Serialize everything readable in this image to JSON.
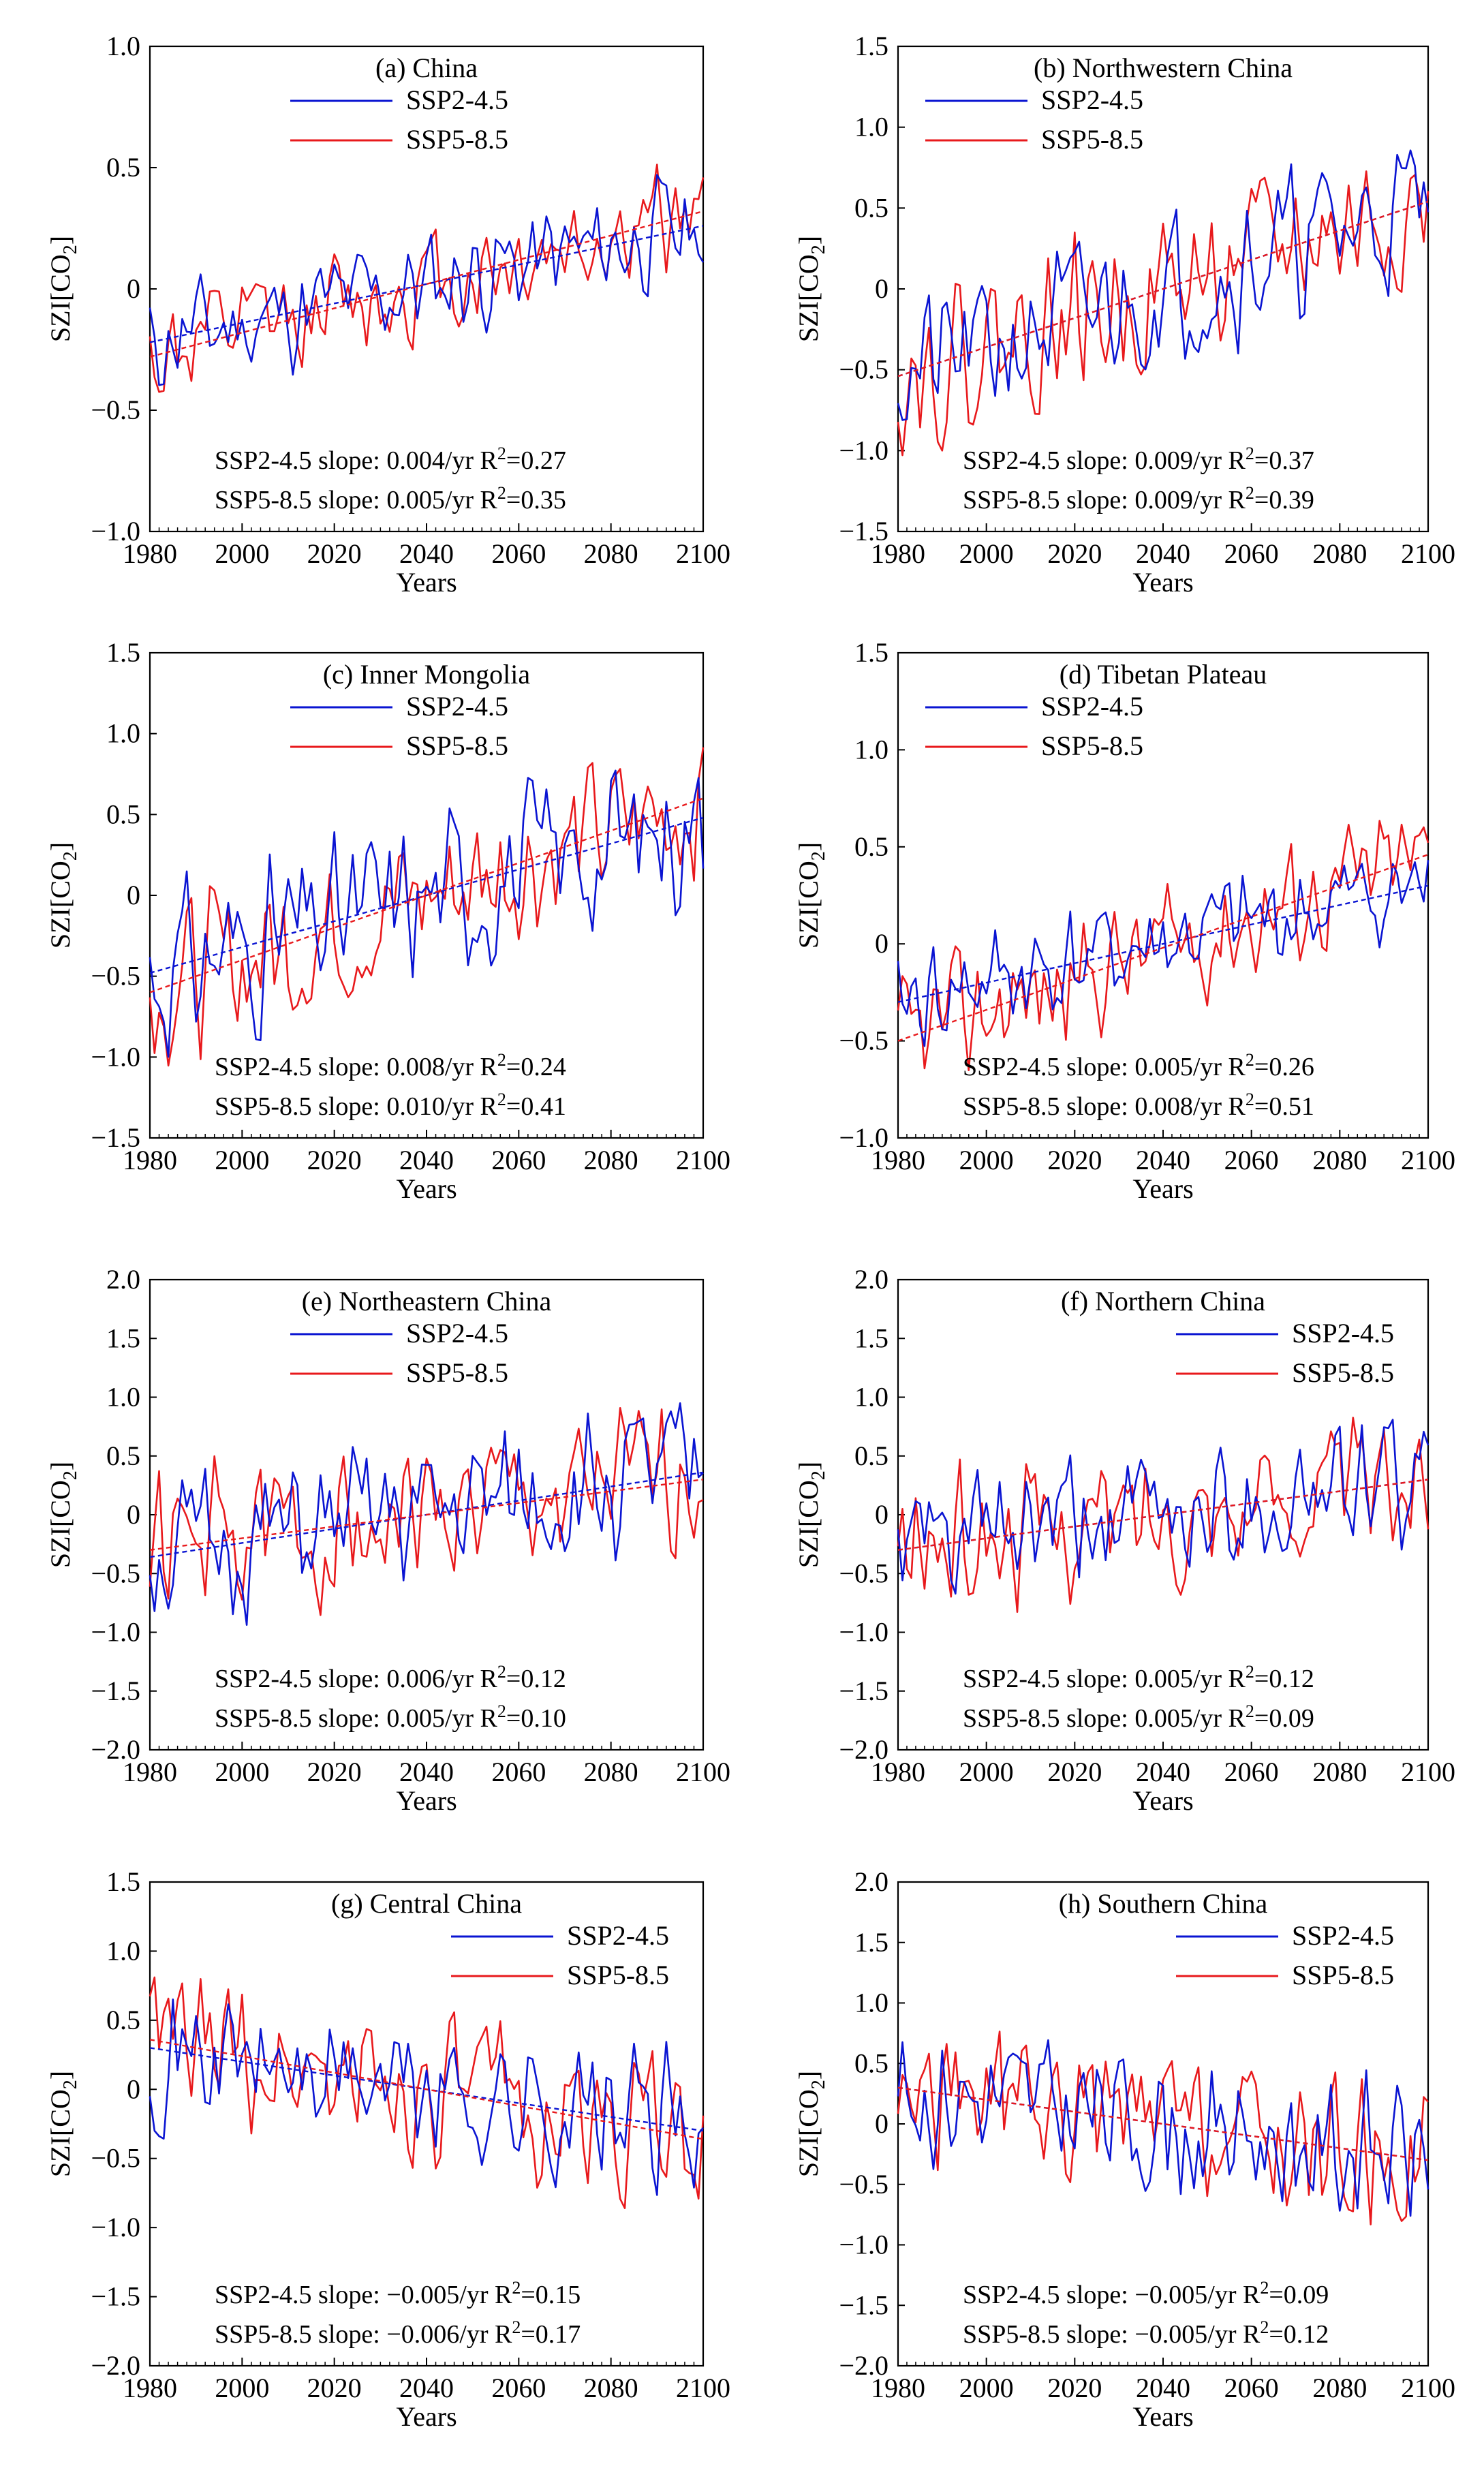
{
  "figure": {
    "colors": {
      "ssp245": "#0a14d2",
      "ssp585": "#e8191c",
      "axis": "#000000"
    },
    "common": {
      "xlabel": "Years",
      "ylabel_main": "SZI[CO",
      "ylabel_sub": "2",
      "ylabel_close": "]",
      "legend_ssp245": "SSP2-4.5",
      "legend_ssp585": "SSP5-8.5",
      "r2_prefix": "R",
      "r2_sup": "2"
    }
  },
  "chart_data": [
    {
      "type": "line",
      "title": "(a) China",
      "xlabel": "Years",
      "ylabel": "SZI[CO2]",
      "xlim": [
        1980,
        2100
      ],
      "ylim": [
        -1.0,
        1.0
      ],
      "yticks": [
        -1.0,
        -0.5,
        0,
        0.5,
        1.0
      ],
      "ytick_labels": [
        "−1.0",
        "−0.5",
        "0",
        "0.5",
        "1.0"
      ],
      "xticks": [
        1980,
        2000,
        2020,
        2040,
        2060,
        2080,
        2100
      ],
      "xtick_labels": [
        "1980",
        "2000",
        "2020",
        "2040",
        "2060",
        "2080",
        "2100"
      ],
      "legend": "top-center",
      "series": [
        {
          "name": "SSP2-4.5",
          "base": 0.02,
          "slope": 0.004,
          "amp": 0.2,
          "seed": 11
        },
        {
          "name": "SSP5-8.5",
          "base": 0.02,
          "slope": 0.005,
          "amp": 0.2,
          "seed": 12
        }
      ],
      "stats": [
        {
          "name": "SSP2-4.5",
          "slope_text": "SSP2-4.5 slope: 0.004/yr",
          "r2": "=0.27"
        },
        {
          "name": "SSP5-8.5",
          "slope_text": "SSP5-8.5 slope: 0.005/yr",
          "r2": "=0.35"
        }
      ]
    },
    {
      "type": "line",
      "title": "(b) Northwestern China",
      "xlabel": "Years",
      "ylabel": "SZI[CO2]",
      "xlim": [
        1980,
        2100
      ],
      "ylim": [
        -1.5,
        1.5
      ],
      "yticks": [
        -1.5,
        -1.0,
        -0.5,
        0,
        0.5,
        1.0,
        1.5
      ],
      "ytick_labels": [
        "−1.5",
        "−1.0",
        "−0.5",
        "0",
        "0.5",
        "1.0",
        "1.5"
      ],
      "xticks": [
        1980,
        2000,
        2020,
        2040,
        2060,
        2080,
        2100
      ],
      "xtick_labels": [
        "1980",
        "2000",
        "2020",
        "2040",
        "2060",
        "2080",
        "2100"
      ],
      "legend": "top-left",
      "series": [
        {
          "name": "SSP2-4.5",
          "base": 0.0,
          "slope": 0.009,
          "amp": 0.4,
          "seed": 21
        },
        {
          "name": "SSP5-8.5",
          "base": 0.0,
          "slope": 0.009,
          "amp": 0.4,
          "seed": 22
        }
      ],
      "stats": [
        {
          "name": "SSP2-4.5",
          "slope_text": "SSP2-4.5 slope: 0.009/yr",
          "r2": "=0.37"
        },
        {
          "name": "SSP5-8.5",
          "slope_text": "SSP5-8.5 slope: 0.009/yr",
          "r2": "=0.39"
        }
      ]
    },
    {
      "type": "line",
      "title": "(c) Inner Mongolia",
      "xlabel": "Years",
      "ylabel": "SZI[CO2]",
      "xlim": [
        1980,
        2100
      ],
      "ylim": [
        -1.5,
        1.5
      ],
      "yticks": [
        -1.5,
        -1.0,
        -0.5,
        0,
        0.5,
        1.0,
        1.5
      ],
      "ytick_labels": [
        "−1.5",
        "−1.0",
        "−0.5",
        "0",
        "0.5",
        "1.0",
        "1.5"
      ],
      "xticks": [
        1980,
        2000,
        2020,
        2040,
        2060,
        2080,
        2100
      ],
      "xtick_labels": [
        "1980",
        "2000",
        "2020",
        "2040",
        "2060",
        "2080",
        "2100"
      ],
      "legend": "top-center",
      "series": [
        {
          "name": "SSP2-4.5",
          "base": 0.0,
          "slope": 0.008,
          "amp": 0.45,
          "seed": 31
        },
        {
          "name": "SSP5-8.5",
          "base": 0.0,
          "slope": 0.01,
          "amp": 0.42,
          "seed": 32
        }
      ],
      "stats": [
        {
          "name": "SSP2-4.5",
          "slope_text": "SSP2-4.5 slope: 0.008/yr",
          "r2": "=0.24"
        },
        {
          "name": "SSP5-8.5",
          "slope_text": "SSP5-8.5 slope: 0.010/yr",
          "r2": "=0.41"
        }
      ]
    },
    {
      "type": "line",
      "title": "(d) Tibetan Plateau",
      "xlabel": "Years",
      "ylabel": "SZI[CO2]",
      "xlim": [
        1980,
        2100
      ],
      "ylim": [
        -1.0,
        1.5
      ],
      "yticks": [
        -1.0,
        -0.5,
        0,
        0.5,
        1.0,
        1.5
      ],
      "ytick_labels": [
        "−1.0",
        "−0.5",
        "0",
        "0.5",
        "1.0",
        "1.5"
      ],
      "xticks": [
        1980,
        2000,
        2020,
        2040,
        2060,
        2080,
        2100
      ],
      "xtick_labels": [
        "1980",
        "2000",
        "2020",
        "2040",
        "2060",
        "2080",
        "2100"
      ],
      "legend": "top-left",
      "series": [
        {
          "name": "SSP2-4.5",
          "base": 0.0,
          "slope": 0.005,
          "amp": 0.25,
          "seed": 41
        },
        {
          "name": "SSP5-8.5",
          "base": -0.02,
          "slope": 0.008,
          "amp": 0.28,
          "seed": 42
        }
      ],
      "stats": [
        {
          "name": "SSP2-4.5",
          "slope_text": "SSP2-4.5 slope: 0.005/yr",
          "r2": "=0.26"
        },
        {
          "name": "SSP5-8.5",
          "slope_text": "SSP5-8.5 slope: 0.008/yr",
          "r2": "=0.51"
        }
      ]
    },
    {
      "type": "line",
      "title": "(e) Northeastern China",
      "xlabel": "Years",
      "ylabel": "SZI[CO2]",
      "xlim": [
        1980,
        2100
      ],
      "ylim": [
        -2.0,
        2.0
      ],
      "yticks": [
        -2.0,
        -1.5,
        -1.0,
        -0.5,
        0,
        0.5,
        1.0,
        1.5,
        2.0
      ],
      "ytick_labels": [
        "−2.0",
        "−1.5",
        "−1.0",
        "−0.5",
        "0",
        "0.5",
        "1.0",
        "1.5",
        "2.0"
      ],
      "xticks": [
        1980,
        2000,
        2020,
        2040,
        2060,
        2080,
        2100
      ],
      "xtick_labels": [
        "1980",
        "2000",
        "2020",
        "2040",
        "2060",
        "2080",
        "2100"
      ],
      "legend": "top-center",
      "series": [
        {
          "name": "SSP2-4.5",
          "base": 0.0,
          "slope": 0.006,
          "amp": 0.55,
          "seed": 51
        },
        {
          "name": "SSP5-8.5",
          "base": 0.0,
          "slope": 0.005,
          "amp": 0.55,
          "seed": 52
        }
      ],
      "stats": [
        {
          "name": "SSP2-4.5",
          "slope_text": "SSP2-4.5 slope: 0.006/yr",
          "r2": "=0.12"
        },
        {
          "name": "SSP5-8.5",
          "slope_text": "SSP5-8.5 slope: 0.005/yr",
          "r2": "=0.10"
        }
      ]
    },
    {
      "type": "line",
      "title": "(f) Northern China",
      "xlabel": "Years",
      "ylabel": "SZI[CO2]",
      "xlim": [
        1980,
        2100
      ],
      "ylim": [
        -2.0,
        2.0
      ],
      "yticks": [
        -2.0,
        -1.5,
        -1.0,
        -0.5,
        0,
        0.5,
        1.0,
        1.5,
        2.0
      ],
      "ytick_labels": [
        "−2.0",
        "−1.5",
        "−1.0",
        "−0.5",
        "0",
        "0.5",
        "1.0",
        "1.5",
        "2.0"
      ],
      "xticks": [
        1980,
        2000,
        2020,
        2040,
        2060,
        2080,
        2100
      ],
      "xtick_labels": [
        "1980",
        "2000",
        "2020",
        "2040",
        "2060",
        "2080",
        "2100"
      ],
      "legend": "top-right",
      "series": [
        {
          "name": "SSP2-4.5",
          "base": 0.0,
          "slope": 0.005,
          "amp": 0.5,
          "seed": 61
        },
        {
          "name": "SSP5-8.5",
          "base": 0.0,
          "slope": 0.005,
          "amp": 0.5,
          "seed": 62
        }
      ],
      "stats": [
        {
          "name": "SSP2-4.5",
          "slope_text": "SSP2-4.5 slope: 0.005/yr",
          "r2": "=0.12"
        },
        {
          "name": "SSP5-8.5",
          "slope_text": "SSP5-8.5 slope: 0.005/yr",
          "r2": "=0.09"
        }
      ]
    },
    {
      "type": "line",
      "title": "(g) Central China",
      "xlabel": "Years",
      "ylabel": "SZI[CO2]",
      "xlim": [
        1980,
        2100
      ],
      "ylim": [
        -2.0,
        1.5
      ],
      "yticks": [
        -2.0,
        -1.5,
        -1.0,
        -0.5,
        0,
        0.5,
        1.0,
        1.5
      ],
      "ytick_labels": [
        "−2.0",
        "−1.5",
        "−1.0",
        "−0.5",
        "0",
        "0.5",
        "1.0",
        "1.5"
      ],
      "xticks": [
        1980,
        2000,
        2020,
        2040,
        2060,
        2080,
        2100
      ],
      "xtick_labels": [
        "1980",
        "2000",
        "2020",
        "2040",
        "2060",
        "2080",
        "2100"
      ],
      "legend": "top-right",
      "series": [
        {
          "name": "SSP2-4.5",
          "base": 0.0,
          "slope": -0.005,
          "amp": 0.45,
          "seed": 71
        },
        {
          "name": "SSP5-8.5",
          "base": 0.0,
          "slope": -0.006,
          "amp": 0.45,
          "seed": 72
        }
      ],
      "stats": [
        {
          "name": "SSP2-4.5",
          "slope_text": "SSP2-4.5 slope: −0.005/yr",
          "r2": "=0.15"
        },
        {
          "name": "SSP5-8.5",
          "slope_text": "SSP5-8.5 slope: −0.006/yr",
          "r2": "=0.17"
        }
      ]
    },
    {
      "type": "line",
      "title": "(h) Southern China",
      "xlabel": "Years",
      "ylabel": "SZI[CO2]",
      "xlim": [
        1980,
        2100
      ],
      "ylim": [
        -2.0,
        2.0
      ],
      "yticks": [
        -2.0,
        -1.5,
        -1.0,
        -0.5,
        0,
        0.5,
        1.0,
        1.5,
        2.0
      ],
      "ytick_labels": [
        "−2.0",
        "−1.5",
        "−1.0",
        "−0.5",
        "0",
        "0.5",
        "1.0",
        "1.5",
        "2.0"
      ],
      "xticks": [
        1980,
        2000,
        2020,
        2040,
        2060,
        2080,
        2100
      ],
      "xtick_labels": [
        "1980",
        "2000",
        "2020",
        "2040",
        "2060",
        "2080",
        "2100"
      ],
      "legend": "top-right",
      "series": [
        {
          "name": "SSP2-4.5",
          "base": 0.0,
          "slope": -0.005,
          "amp": 0.5,
          "seed": 81
        },
        {
          "name": "SSP5-8.5",
          "base": 0.0,
          "slope": -0.005,
          "amp": 0.5,
          "seed": 82
        }
      ],
      "stats": [
        {
          "name": "SSP2-4.5",
          "slope_text": "SSP2-4.5 slope: −0.005/yr",
          "r2": "=0.09"
        },
        {
          "name": "SSP5-8.5",
          "slope_text": "SSP5-8.5 slope: −0.005/yr",
          "r2": "=0.12"
        }
      ]
    }
  ]
}
